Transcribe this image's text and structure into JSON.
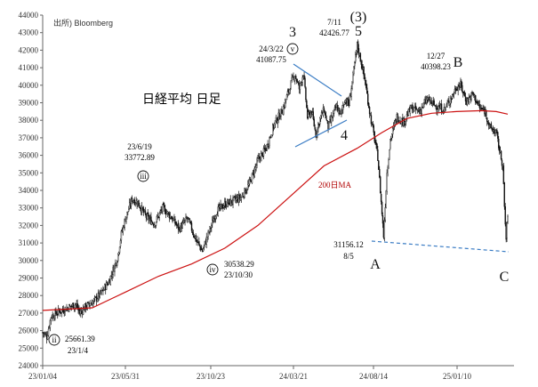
{
  "chart_data": {
    "type": "candlestick",
    "title": "日経平均 日足",
    "source": "出所) Bloomberg",
    "y_range": [
      24000,
      44000
    ],
    "y_ticks": [
      24000,
      25000,
      26000,
      27000,
      28000,
      29000,
      30000,
      31000,
      32000,
      33000,
      34000,
      35000,
      36000,
      37000,
      38000,
      39000,
      40000,
      41000,
      42000,
      43000,
      44000
    ],
    "x_tick_labels": [
      "23/01/04",
      "23/05/31",
      "23/10/23",
      "24/03/21",
      "24/08/14",
      "25/01/10"
    ],
    "price_path": [
      [
        0,
        25900
      ],
      [
        5,
        25660
      ],
      [
        10,
        26800
      ],
      [
        20,
        27100
      ],
      [
        30,
        27300
      ],
      [
        40,
        27500
      ],
      [
        45,
        27000
      ],
      [
        50,
        27300
      ],
      [
        60,
        27600
      ],
      [
        70,
        28100
      ],
      [
        80,
        28800
      ],
      [
        90,
        30100
      ],
      [
        95,
        31500
      ],
      [
        100,
        32400
      ],
      [
        108,
        33500
      ],
      [
        115,
        33300
      ],
      [
        125,
        32500
      ],
      [
        135,
        32100
      ],
      [
        145,
        33000
      ],
      [
        155,
        32500
      ],
      [
        165,
        31800
      ],
      [
        175,
        32400
      ],
      [
        185,
        31200
      ],
      [
        193,
        30550
      ],
      [
        200,
        31500
      ],
      [
        210,
        32800
      ],
      [
        220,
        33200
      ],
      [
        230,
        33400
      ],
      [
        240,
        33600
      ],
      [
        250,
        34400
      ],
      [
        260,
        35700
      ],
      [
        270,
        36400
      ],
      [
        280,
        37800
      ],
      [
        290,
        38600
      ],
      [
        300,
        40100
      ],
      [
        305,
        40600
      ],
      [
        310,
        39800
      ],
      [
        315,
        40700
      ],
      [
        320,
        38200
      ],
      [
        325,
        38500
      ],
      [
        330,
        37200
      ],
      [
        335,
        38100
      ],
      [
        340,
        38600
      ],
      [
        345,
        37600
      ],
      [
        350,
        38200
      ],
      [
        355,
        38800
      ],
      [
        360,
        38300
      ],
      [
        365,
        39200
      ],
      [
        370,
        38900
      ],
      [
        375,
        40500
      ],
      [
        380,
        42300
      ],
      [
        385,
        41300
      ],
      [
        390,
        40100
      ],
      [
        395,
        38500
      ],
      [
        400,
        37200
      ],
      [
        405,
        35900
      ],
      [
        412,
        31400
      ],
      [
        416,
        35000
      ],
      [
        420,
        36900
      ],
      [
        428,
        38200
      ],
      [
        436,
        37900
      ],
      [
        445,
        38700
      ],
      [
        455,
        38500
      ],
      [
        465,
        39200
      ],
      [
        475,
        38800
      ],
      [
        485,
        38600
      ],
      [
        495,
        39400
      ],
      [
        500,
        39900
      ],
      [
        505,
        40000
      ],
      [
        512,
        39100
      ],
      [
        520,
        39500
      ],
      [
        528,
        38700
      ],
      [
        535,
        38500
      ],
      [
        540,
        37600
      ],
      [
        548,
        37300
      ],
      [
        552,
        36300
      ],
      [
        556,
        35400
      ],
      [
        558,
        33000
      ],
      [
        560,
        31200
      ],
      [
        562,
        32700
      ]
    ],
    "series": [
      {
        "name": "200日MA",
        "values": [
          [
            0,
            27150
          ],
          [
            60,
            27300
          ],
          [
            100,
            28200
          ],
          [
            140,
            29100
          ],
          [
            180,
            29800
          ],
          [
            220,
            30700
          ],
          [
            260,
            32000
          ],
          [
            300,
            33700
          ],
          [
            340,
            35400
          ],
          [
            380,
            36400
          ],
          [
            410,
            37300
          ],
          [
            440,
            38100
          ],
          [
            470,
            38400
          ],
          [
            500,
            38500
          ],
          [
            530,
            38550
          ],
          [
            548,
            38500
          ],
          [
            562,
            38350
          ]
        ]
      }
    ],
    "annotations": [
      {
        "label": "ii",
        "value": "25661.39",
        "date": "23/1/4"
      },
      {
        "label": "iii",
        "date": "23/6/19",
        "value": "33772.89"
      },
      {
        "label": "iv",
        "value": "30538.29",
        "date": "23/10/30"
      },
      {
        "label": "v",
        "date": "24/3/22",
        "value": "41087.75"
      },
      {
        "label": "3"
      },
      {
        "label": "(3)"
      },
      {
        "label": "5",
        "date": "7/11",
        "value": "42426.77"
      },
      {
        "label": "4"
      },
      {
        "label": "B",
        "date": "12/27",
        "value": "40398.23"
      },
      {
        "label": "A",
        "value": "31156.12",
        "date": "8/5"
      },
      {
        "label": "C"
      }
    ],
    "ma_label": "200日MA",
    "colors": {
      "candles": "#111111",
      "ma": "#cc1111",
      "triangle": "#3a7cc4",
      "support": "#3a7cc4",
      "axis": "#666666"
    }
  }
}
